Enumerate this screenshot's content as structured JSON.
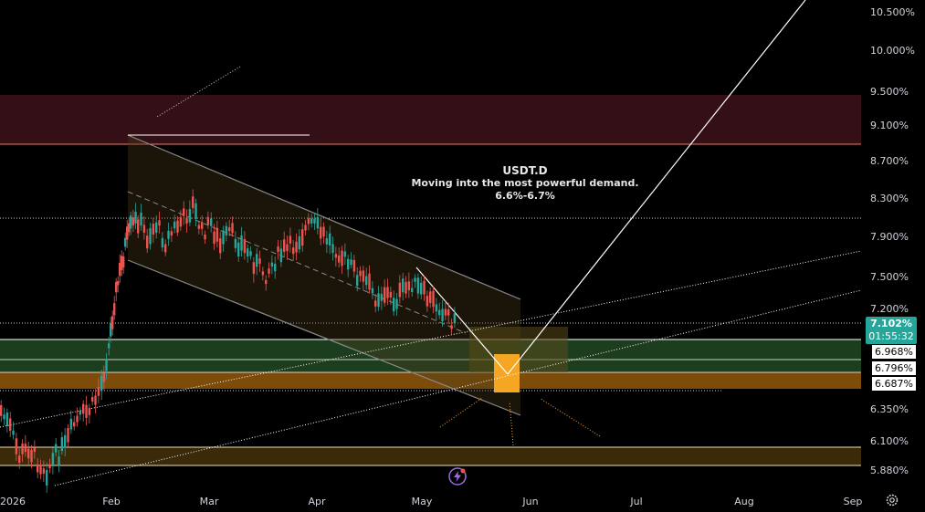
{
  "chart_data": {
    "type": "candlestick",
    "symbol": "USDT.D",
    "annotation_title": "USDT.D",
    "annotation_lines": [
      "Moving into the most powerful demand.",
      "6.6%-6.7%"
    ],
    "y_ticks": [
      "10.500%",
      "10.000%",
      "9.500%",
      "9.100%",
      "8.700%",
      "8.300%",
      "7.900%",
      "7.500%",
      "7.200%",
      "6.350%",
      "6.100%",
      "5.880%"
    ],
    "x_ticks": [
      "2026",
      "Feb",
      "Mar",
      "Apr",
      "May",
      "Jun",
      "Jul",
      "Aug",
      "Sep"
    ],
    "current_price": "7.102%",
    "countdown": "01:55:32",
    "price_labels": [
      "6.968%",
      "6.796%",
      "6.687%"
    ],
    "zones": [
      {
        "name": "supply-zone",
        "from": 9.1,
        "to": 9.5,
        "color": "#3a1118"
      },
      {
        "name": "demand-zone-green",
        "from": 6.796,
        "to": 6.968,
        "color": "#1c3a1c"
      },
      {
        "name": "demand-zone-orange",
        "from": 6.687,
        "to": 6.796,
        "color": "#7a4b0c"
      },
      {
        "name": "low-zone",
        "from": 5.88,
        "to": 6.1,
        "color": "#3a2a0a"
      }
    ],
    "ylim": [
      5.8,
      10.7
    ],
    "grid": false,
    "colors": {
      "up": "#26a69a",
      "down": "#ef5350",
      "accent": "#f5a623",
      "price_bg": "#26a69a"
    }
  }
}
